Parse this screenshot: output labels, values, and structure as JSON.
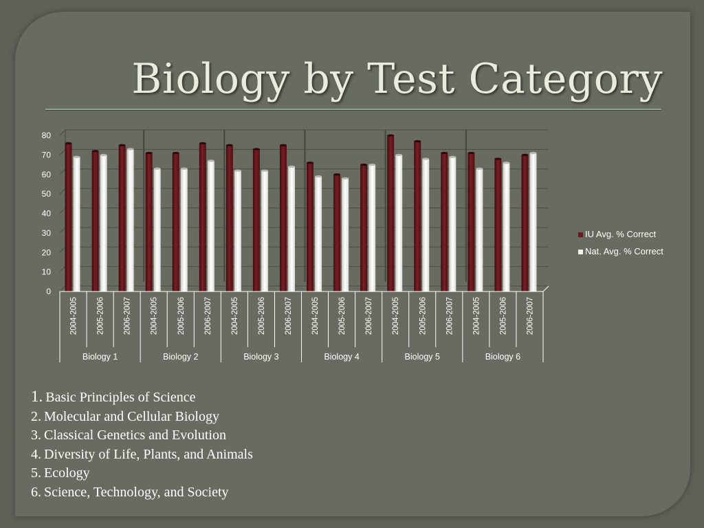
{
  "slide": {
    "title": "Biology by Test Category",
    "categories": [
      {
        "number": "1.",
        "text": "Basic Principles of Science"
      },
      {
        "number": "2.",
        "text": "Molecular and Cellular Biology"
      },
      {
        "number": "3.",
        "text": "Classical Genetics and Evolution"
      },
      {
        "number": "4.",
        "text": "Diversity of Life, Plants, and Animals"
      },
      {
        "number": "5.",
        "text": "Ecology"
      },
      {
        "number": "6.",
        "text": "Science, Technology, and Society"
      }
    ]
  },
  "colors": {
    "iu_bar": "#6b1a1e",
    "nat_bar": "#f4f4ef",
    "text": "#ffffff",
    "gridline": "#4a4c44"
  },
  "chart_data": {
    "type": "bar",
    "title": "",
    "xlabel": "",
    "ylabel": "",
    "ylim": [
      0,
      80
    ],
    "yticks": [
      0,
      10,
      20,
      30,
      40,
      50,
      60,
      70,
      80
    ],
    "grid": true,
    "legend_position": "right",
    "groups": [
      "Biology 1",
      "Biology 2",
      "Biology 3",
      "Biology 4",
      "Biology 5",
      "Biology 6"
    ],
    "subcategories": [
      "2004-2005",
      "2005-2006",
      "2006-2007"
    ],
    "series": [
      {
        "name": "IU Avg. % Correct",
        "values": [
          76,
          72,
          75,
          71,
          71,
          76,
          75,
          73,
          75,
          66,
          60,
          65,
          80,
          77,
          71,
          71,
          68,
          70
        ]
      },
      {
        "name": "Nat. Avg. % Correct",
        "values": [
          69,
          70,
          73,
          63,
          63,
          67,
          62,
          62,
          64,
          59,
          58,
          65,
          70,
          68,
          69,
          63,
          66,
          71
        ]
      }
    ]
  }
}
